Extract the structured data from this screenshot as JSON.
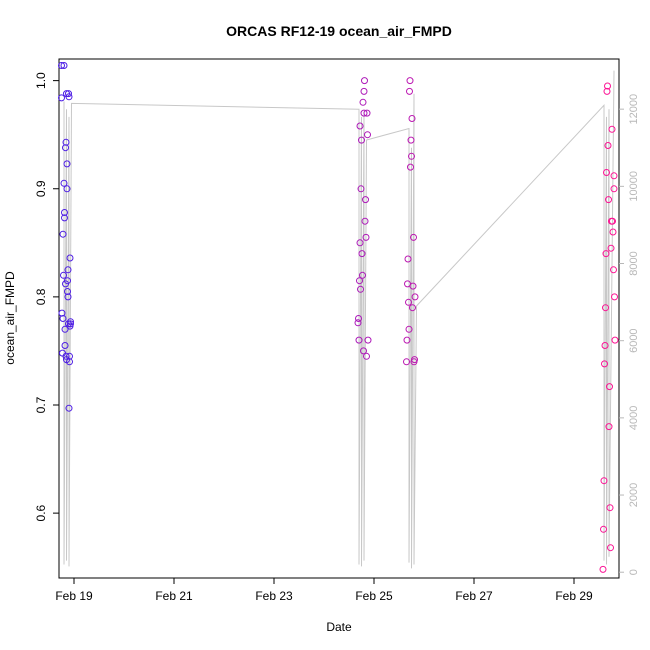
{
  "chart_data": {
    "type": "scatter",
    "title": "ORCAS RF12-19 ocean_air_FMPD",
    "xlabel": "Date",
    "ylabel": "ocean_air_FMPD",
    "x_ticks": [
      "Feb 19",
      "Feb 21",
      "Feb 23",
      "Feb 25",
      "Feb 27",
      "Feb 29"
    ],
    "x_tick_days": [
      19,
      21,
      23,
      25,
      27,
      29
    ],
    "xlim": [
      18.7,
      29.9
    ],
    "ylim": [
      0.54,
      1.02
    ],
    "y_ticks": [
      0.6,
      0.7,
      0.8,
      0.9,
      1.0
    ],
    "y2_ticks": [
      0,
      2000,
      4000,
      6000,
      8000,
      10000,
      12000
    ],
    "y2lim": [
      -150,
      13300
    ],
    "grid": false,
    "colors": {
      "point_early": "#4b1ee6",
      "point_late": "#ff1493",
      "altitude_line": "#c8c8c8",
      "axis": "#000000",
      "right_axis": "#b8b8b8"
    },
    "altitude_trace": {
      "x": [
        18.8,
        18.8,
        18.85,
        18.85,
        18.9,
        18.9,
        18.95,
        24.7,
        24.7,
        24.75,
        24.75,
        24.8,
        24.8,
        24.85,
        25.7,
        25.7,
        25.75,
        25.75,
        25.8,
        25.8,
        25.85,
        29.6,
        29.6,
        29.65,
        29.65,
        29.7,
        29.7,
        29.8
      ],
      "y": [
        12200,
        200,
        12000,
        300,
        11800,
        150,
        12150,
        12000,
        200,
        11800,
        150,
        11900,
        300,
        11200,
        11500,
        250,
        11000,
        100,
        12400,
        200,
        6900,
        12100,
        300,
        11800,
        200,
        12000,
        400,
        13000
      ]
    },
    "series": [
      {
        "x": [
          18.75,
          18.75,
          18.76,
          18.77,
          18.78,
          18.78,
          18.79,
          18.8,
          18.8,
          18.81,
          18.81,
          18.82,
          18.82,
          18.83,
          18.83,
          18.84,
          18.84,
          18.85,
          18.85,
          18.86,
          18.86,
          18.87,
          18.87,
          18.88,
          18.88,
          18.89,
          18.89,
          18.9,
          18.9,
          18.91,
          18.91,
          18.92,
          18.92,
          18.93,
          18.93
        ],
        "y": [
          1.014,
          0.984,
          0.785,
          0.748,
          0.78,
          0.858,
          0.82,
          1.014,
          0.905,
          0.878,
          0.873,
          0.77,
          0.755,
          0.812,
          0.938,
          0.943,
          0.745,
          0.742,
          0.988,
          0.923,
          0.9,
          0.805,
          0.815,
          0.825,
          0.8,
          0.775,
          0.988,
          0.985,
          0.697,
          0.74,
          0.745,
          0.836,
          0.773,
          0.775,
          0.777
        ]
      },
      {
        "x": [
          24.68,
          24.69,
          24.7,
          24.71,
          24.72,
          24.72,
          24.73,
          24.74,
          24.75,
          24.76,
          24.77,
          24.78,
          24.79,
          24.8,
          24.8,
          24.81,
          24.82,
          24.83,
          24.84,
          24.85,
          24.86,
          24.87,
          24.88,
          25.65,
          25.66,
          25.67,
          25.68,
          25.69,
          25.7,
          25.71,
          25.72,
          25.73,
          25.74,
          25.75,
          25.76,
          25.77,
          25.78,
          25.79,
          25.8,
          25.81,
          25.82
        ],
        "y": [
          0.776,
          0.78,
          0.76,
          0.815,
          0.85,
          0.958,
          0.807,
          0.9,
          0.945,
          0.84,
          0.82,
          0.98,
          0.75,
          0.97,
          0.99,
          1.0,
          0.87,
          0.89,
          0.855,
          0.745,
          0.97,
          0.95,
          0.76,
          0.74,
          0.76,
          0.812,
          0.835,
          0.795,
          0.77,
          0.99,
          1.0,
          0.92,
          0.945,
          0.93,
          0.965,
          0.79,
          0.81,
          0.855,
          0.74,
          0.742,
          0.8
        ]
      },
      {
        "x": [
          29.58,
          29.59,
          29.6,
          29.61,
          29.62,
          29.63,
          29.64,
          29.65,
          29.66,
          29.67,
          29.68,
          29.69,
          29.7,
          29.71,
          29.72,
          29.73,
          29.74,
          29.75,
          29.76,
          29.77,
          29.78,
          29.79,
          29.8,
          29.8,
          29.81,
          29.82
        ],
        "y": [
          0.548,
          0.585,
          0.63,
          0.738,
          0.755,
          0.79,
          0.84,
          0.915,
          0.99,
          0.995,
          0.94,
          0.89,
          0.68,
          0.717,
          0.605,
          0.568,
          0.845,
          0.87,
          0.955,
          0.87,
          0.86,
          0.825,
          0.912,
          0.9,
          0.8,
          0.76
        ]
      }
    ]
  }
}
